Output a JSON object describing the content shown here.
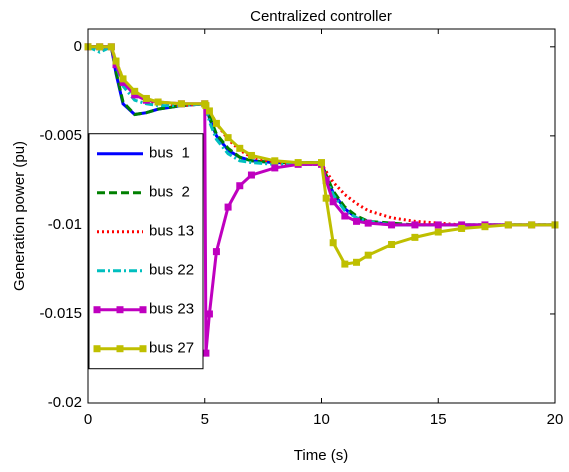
{
  "chart_data": {
    "type": "line",
    "title": "Centralized controller",
    "x_label": "Time (s)",
    "y_label": "Generation power (pu)",
    "xlim": [
      0,
      20
    ],
    "xticks": [
      0,
      5,
      10,
      15,
      20
    ],
    "ylim": [
      -0.02,
      0.001
    ],
    "yticks": [
      -0.02,
      -0.015,
      -0.01,
      -0.005,
      0
    ],
    "grid": false,
    "legend_loc": "west",
    "x": [
      0,
      0.5,
      1,
      1.2,
      1.5,
      2,
      2.5,
      3,
      4,
      5,
      5.05,
      5.2,
      5.5,
      6,
      6.5,
      7,
      8,
      9,
      10,
      10.2,
      10.5,
      11,
      11.5,
      12,
      13,
      14,
      15,
      16,
      17,
      18,
      19,
      20
    ],
    "series": [
      {
        "name": "bus  1",
        "color": "#0000ff",
        "linestyle": "solid",
        "marker": "none",
        "values": [
          0,
          0,
          0,
          -0.0015,
          -0.0032,
          -0.0038,
          -0.0037,
          -0.0035,
          -0.0033,
          -0.0032,
          -0.0033,
          -0.004,
          -0.005,
          -0.0058,
          -0.0062,
          -0.0064,
          -0.0065,
          -0.0065,
          -0.0065,
          -0.0073,
          -0.0082,
          -0.0091,
          -0.0096,
          -0.0098,
          -0.01,
          -0.01,
          -0.01,
          -0.01,
          -0.01,
          -0.01,
          -0.01,
          -0.01
        ]
      },
      {
        "name": "bus  2",
        "color": "#008000",
        "linestyle": "dashed",
        "marker": "none",
        "values": [
          0,
          0,
          0,
          -0.0014,
          -0.0031,
          -0.0038,
          -0.0037,
          -0.0035,
          -0.0033,
          -0.0032,
          -0.0033,
          -0.0039,
          -0.0049,
          -0.0057,
          -0.0062,
          -0.0064,
          -0.0065,
          -0.0065,
          -0.0065,
          -0.0072,
          -0.0081,
          -0.009,
          -0.0095,
          -0.0098,
          -0.0099,
          -0.01,
          -0.01,
          -0.01,
          -0.01,
          -0.01,
          -0.01,
          -0.01
        ]
      },
      {
        "name": "bus 13",
        "color": "#ff0000",
        "linestyle": "dotted",
        "marker": "none",
        "values": [
          0,
          0,
          0,
          -0.0008,
          -0.0018,
          -0.0026,
          -0.003,
          -0.0032,
          -0.0033,
          -0.0032,
          -0.0033,
          -0.0036,
          -0.0043,
          -0.0052,
          -0.0058,
          -0.0062,
          -0.0065,
          -0.0066,
          -0.0066,
          -0.007,
          -0.0076,
          -0.0083,
          -0.0088,
          -0.0092,
          -0.0096,
          -0.0098,
          -0.0099,
          -0.01,
          -0.01,
          -0.01,
          -0.01,
          -0.01
        ]
      },
      {
        "name": "bus 22",
        "color": "#00bfbf",
        "linestyle": "dashdot",
        "marker": "none",
        "values": [
          0,
          -0.0003,
          0,
          -0.001,
          -0.0022,
          -0.003,
          -0.0032,
          -0.0033,
          -0.0033,
          -0.0032,
          -0.0034,
          -0.0042,
          -0.0052,
          -0.006,
          -0.0064,
          -0.0065,
          -0.0066,
          -0.0066,
          -0.0066,
          -0.0074,
          -0.0083,
          -0.0092,
          -0.0096,
          -0.0098,
          -0.01,
          -0.01,
          -0.01,
          -0.01,
          -0.01,
          -0.01,
          -0.01,
          -0.01
        ]
      },
      {
        "name": "bus 23",
        "color": "#bf00bf",
        "linestyle": "solid",
        "marker": "square",
        "values": [
          0,
          0,
          0,
          -0.001,
          -0.002,
          -0.0027,
          -0.003,
          -0.0031,
          -0.0032,
          -0.0032,
          -0.0172,
          -0.015,
          -0.0115,
          -0.009,
          -0.0078,
          -0.0072,
          -0.0068,
          -0.0066,
          -0.0066,
          -0.0075,
          -0.0087,
          -0.0095,
          -0.0098,
          -0.0099,
          -0.01,
          -0.01,
          -0.01,
          -0.01,
          -0.01,
          -0.01,
          -0.01,
          -0.01
        ]
      },
      {
        "name": "bus 27",
        "color": "#bfbf00",
        "linestyle": "solid",
        "marker": "square",
        "values": [
          0,
          0,
          0,
          -0.0008,
          -0.0018,
          -0.0025,
          -0.0029,
          -0.0031,
          -0.0032,
          -0.0032,
          -0.0033,
          -0.0036,
          -0.0043,
          -0.0051,
          -0.0057,
          -0.0061,
          -0.0064,
          -0.0065,
          -0.0065,
          -0.0085,
          -0.011,
          -0.0122,
          -0.0121,
          -0.0117,
          -0.0111,
          -0.0107,
          -0.0104,
          -0.0102,
          -0.0101,
          -0.01,
          -0.01,
          -0.01
        ]
      }
    ]
  }
}
